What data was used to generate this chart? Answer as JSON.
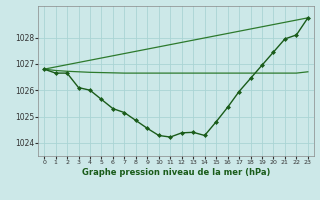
{
  "title": "Graphe pression niveau de la mer (hPa)",
  "background_color": "#cce8e8",
  "grid_color": "#aad4d4",
  "xlim": [
    -0.5,
    23.5
  ],
  "ylim": [
    1023.5,
    1029.2
  ],
  "yticks": [
    1024,
    1025,
    1026,
    1027,
    1028
  ],
  "xticks": [
    0,
    1,
    2,
    3,
    4,
    5,
    6,
    7,
    8,
    9,
    10,
    11,
    12,
    13,
    14,
    15,
    16,
    17,
    18,
    19,
    20,
    21,
    22,
    23
  ],
  "series_main": {
    "x": [
      0,
      1,
      2,
      3,
      4,
      5,
      6,
      7,
      8,
      9,
      10,
      11,
      12,
      13,
      14,
      15,
      16,
      17,
      18,
      19,
      20,
      21,
      22,
      23
    ],
    "y": [
      1026.8,
      1026.65,
      1026.65,
      1026.1,
      1026.0,
      1025.65,
      1025.3,
      1025.15,
      1024.85,
      1024.55,
      1024.28,
      1024.22,
      1024.38,
      1024.4,
      1024.28,
      1024.8,
      1025.35,
      1025.95,
      1026.45,
      1026.95,
      1027.45,
      1027.95,
      1028.1,
      1028.75
    ],
    "marker": "D",
    "markersize": 2.0,
    "linewidth": 1.0,
    "color": "#1a5c1a"
  },
  "series_flat": {
    "x": [
      0,
      1,
      2,
      3,
      4,
      5,
      6,
      7,
      8,
      9,
      10,
      11,
      12,
      13,
      14,
      15,
      16,
      17,
      18,
      19,
      20,
      21,
      22,
      23
    ],
    "y": [
      1026.8,
      1026.75,
      1026.72,
      1026.7,
      1026.68,
      1026.67,
      1026.66,
      1026.65,
      1026.65,
      1026.65,
      1026.65,
      1026.65,
      1026.65,
      1026.65,
      1026.65,
      1026.65,
      1026.65,
      1026.65,
      1026.65,
      1026.65,
      1026.65,
      1026.65,
      1026.65,
      1026.7
    ],
    "linewidth": 0.9,
    "color": "#2d7a2d"
  },
  "series_diag": {
    "x": [
      0,
      23
    ],
    "y": [
      1026.8,
      1028.75
    ],
    "linewidth": 0.9,
    "color": "#2d7a2d"
  }
}
